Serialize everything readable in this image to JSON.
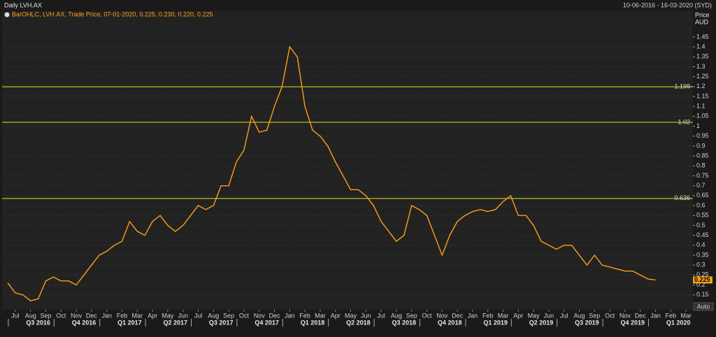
{
  "chart_data": {
    "type": "line",
    "title": "Daily LVH.AX",
    "date_range": "10-06-2016 - 16-03-2020 (SYD)",
    "legend_text": "BarOHLC, LVH.AX, Trade Price, 07-01-2020, 0.225, 0.230, 0.220, 0.225",
    "y_axis_title": "Price",
    "y_axis_unit": "AUD",
    "button": "Auto",
    "color": "#ff9f1a",
    "level_color": "#e6e020",
    "grid": true,
    "categories": [
      null,
      "Jul",
      null,
      "Aug",
      null,
      "Sep",
      null,
      "Oct",
      null,
      "Nov",
      null,
      "Dec",
      null,
      "Jan",
      null,
      "Feb",
      null,
      "Mar",
      null,
      "Apr",
      null,
      "May",
      null,
      "Jun",
      null,
      "Jul",
      null,
      "Aug",
      null,
      "Sep",
      null,
      "Oct",
      null,
      "Nov",
      null,
      "Dec",
      null,
      "Jan",
      null,
      "Feb",
      null,
      "Mar",
      null,
      "Apr",
      null,
      "May",
      null,
      "Jun",
      null,
      "Jul",
      null,
      "Aug",
      null,
      "Sep",
      null,
      "Oct",
      null,
      "Nov",
      null,
      "Dec",
      null,
      "Jan",
      null,
      "Feb",
      null,
      "Mar",
      null,
      "Apr",
      null,
      "May",
      null,
      "Jun",
      null,
      "Jul",
      null,
      "Aug",
      null,
      "Sep",
      null,
      "Oct",
      null,
      "Nov",
      null,
      "Dec",
      null,
      "Jan",
      null,
      "Feb",
      null,
      "Mar",
      null
    ],
    "values": [
      0.21,
      0.16,
      0.15,
      0.12,
      0.13,
      0.22,
      0.24,
      0.22,
      0.22,
      0.2,
      0.25,
      0.3,
      0.35,
      0.37,
      0.4,
      0.42,
      0.52,
      0.47,
      0.45,
      0.52,
      0.55,
      0.5,
      0.47,
      0.5,
      0.55,
      0.6,
      0.58,
      0.6,
      0.7,
      0.7,
      0.82,
      0.88,
      1.05,
      0.97,
      0.98,
      1.1,
      1.2,
      1.4,
      1.35,
      1.1,
      0.98,
      0.95,
      0.9,
      0.82,
      0.75,
      0.68,
      0.68,
      0.65,
      0.6,
      0.52,
      0.47,
      0.42,
      0.45,
      0.6,
      0.58,
      0.55,
      0.45,
      0.35,
      0.45,
      0.52,
      0.55,
      0.57,
      0.58,
      0.57,
      0.58,
      0.62,
      0.65,
      0.55,
      0.55,
      0.5,
      0.42,
      0.4,
      0.38,
      0.4,
      0.4,
      0.35,
      0.3,
      0.35,
      0.3,
      0.29,
      0.28,
      0.27,
      0.27,
      0.25,
      0.23,
      0.225,
      null,
      null,
      null,
      null,
      null
    ],
    "quarters": [
      "Q3 2016",
      "Q4 2016",
      "Q1 2017",
      "Q2 2017",
      "Q3 2017",
      "Q4 2017",
      "Q1 2018",
      "Q2 2018",
      "Q3 2018",
      "Q4 2018",
      "Q1 2019",
      "Q2 2019",
      "Q3 2019",
      "Q4 2019",
      "Q1 2020"
    ],
    "levels": [
      1.199,
      1.02,
      0.636
    ],
    "ylim": [
      0.075,
      1.58
    ],
    "yticks": [
      0.15,
      0.2,
      0.25,
      0.3,
      0.35,
      0.4,
      0.45,
      0.5,
      0.55,
      0.6,
      0.65,
      0.7,
      0.75,
      0.8,
      0.85,
      0.9,
      0.95,
      1,
      1.05,
      1.1,
      1.15,
      1.2,
      1.25,
      1.3,
      1.35,
      1.4,
      1.45
    ]
  }
}
